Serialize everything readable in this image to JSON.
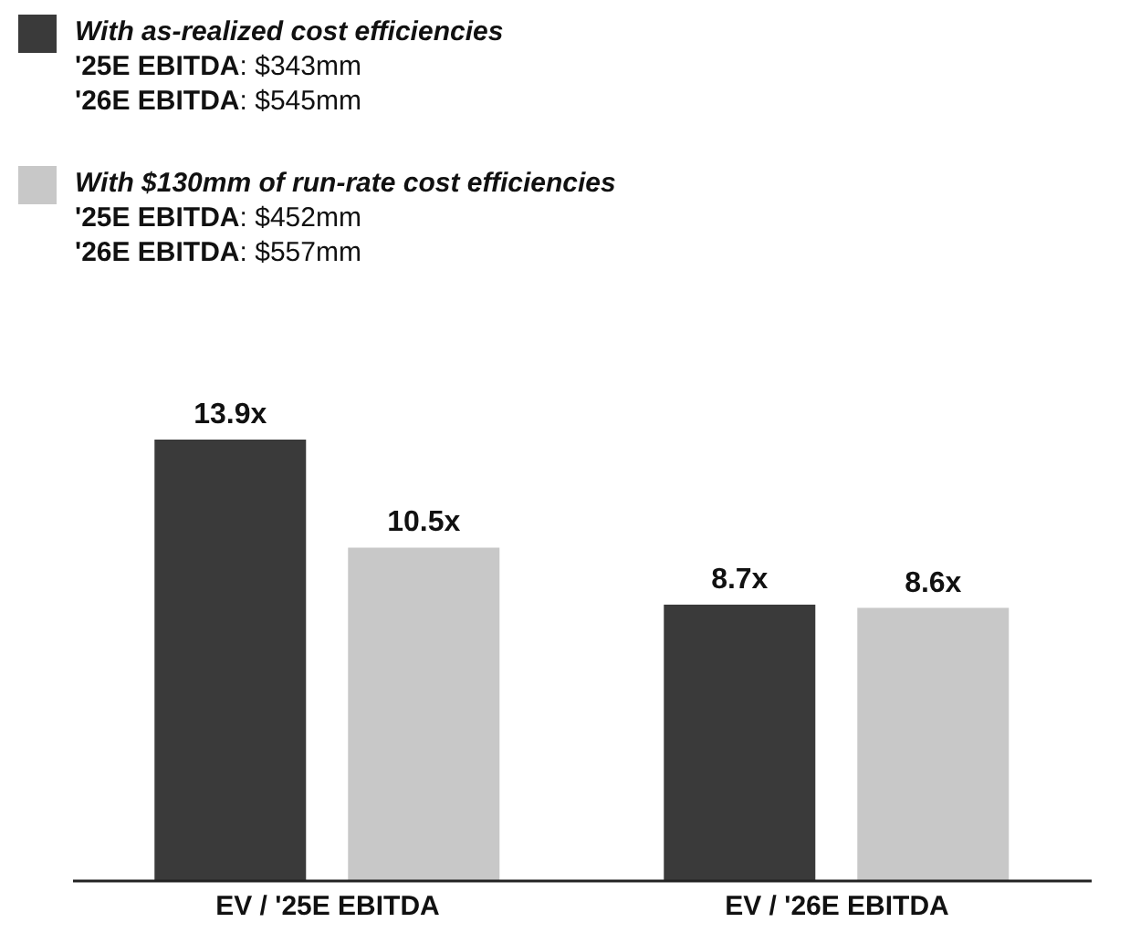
{
  "chart_data": {
    "type": "bar",
    "categories": [
      "EV / '25E EBITDA",
      "EV / '26E EBITDA"
    ],
    "series": [
      {
        "name": "With as-realized cost efficiencies",
        "color": "#3a3a3a",
        "values": [
          13.9,
          8.7
        ],
        "value_labels": [
          "13.9x",
          "8.7x"
        ]
      },
      {
        "name": "With $130mm of run-rate cost efficiencies",
        "color": "#c8c8c8",
        "values": [
          10.5,
          8.6
        ],
        "value_labels": [
          "10.5x",
          "8.6x"
        ]
      }
    ],
    "annotations": [
      "'25E EBITDA: $343mm",
      "'26E EBITDA: $545mm",
      "'25E EBITDA: $452mm",
      "'26E EBITDA: $557mm"
    ],
    "legend": "top left",
    "tick_labels": "x"
  }
}
